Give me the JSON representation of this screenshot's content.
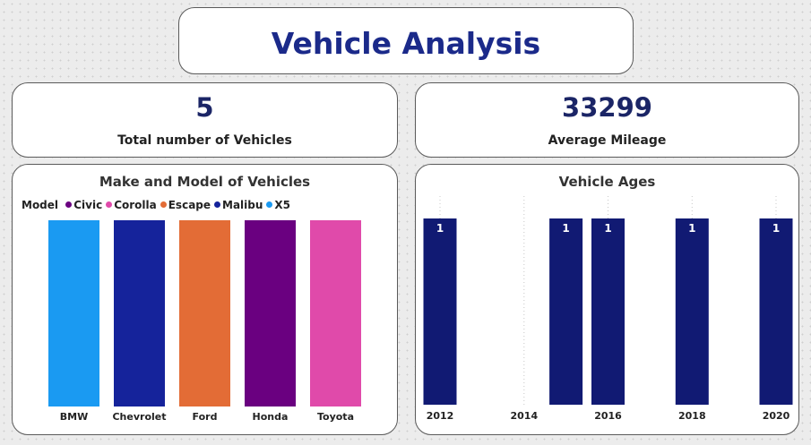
{
  "page": {
    "title": "Vehicle Analysis"
  },
  "kpis": {
    "total_vehicles": {
      "value": "5",
      "label": "Total number of Vehicles"
    },
    "avg_mileage": {
      "value": "33299",
      "label": "Average Mileage"
    }
  },
  "colors": {
    "accent": "#1b2a8a",
    "bar_navy": "#111a73"
  },
  "chart_data": [
    {
      "type": "bar",
      "title": "Make and Model of Vehicles",
      "legend_title": "Model",
      "legend_placement": "top-left",
      "categories": [
        "BMW",
        "Chevrolet",
        "Ford",
        "Honda",
        "Toyota"
      ],
      "series": [
        {
          "name": "Civic",
          "color": "#6a0080",
          "values": [
            null,
            null,
            null,
            1,
            null
          ]
        },
        {
          "name": "Corolla",
          "color": "#e04aaa",
          "values": [
            null,
            null,
            null,
            null,
            1
          ]
        },
        {
          "name": "Escape",
          "color": "#e36c36",
          "values": [
            null,
            null,
            1,
            null,
            null
          ]
        },
        {
          "name": "Malibu",
          "color": "#15239b",
          "values": [
            null,
            1,
            null,
            null,
            null
          ]
        },
        {
          "name": "X5",
          "color": "#1a9af2",
          "values": [
            1,
            null,
            null,
            null,
            null
          ]
        }
      ],
      "ylim": [
        0,
        1
      ],
      "grid": false
    },
    {
      "type": "bar",
      "title": "Vehicle Ages",
      "x": [
        2012,
        2015,
        2016,
        2018,
        2020
      ],
      "values": [
        1,
        1,
        1,
        1,
        1
      ],
      "color": "#111a73",
      "xlim": [
        2012,
        2020
      ],
      "x_tick_labels": [
        "2012",
        "2014",
        "2016",
        "2018",
        "2020"
      ],
      "x_ticks": [
        2012,
        2014,
        2016,
        2018,
        2020
      ],
      "ylim": [
        0,
        1
      ],
      "data_labels": [
        "1",
        "1",
        "1",
        "1",
        "1"
      ],
      "grid": true
    }
  ]
}
